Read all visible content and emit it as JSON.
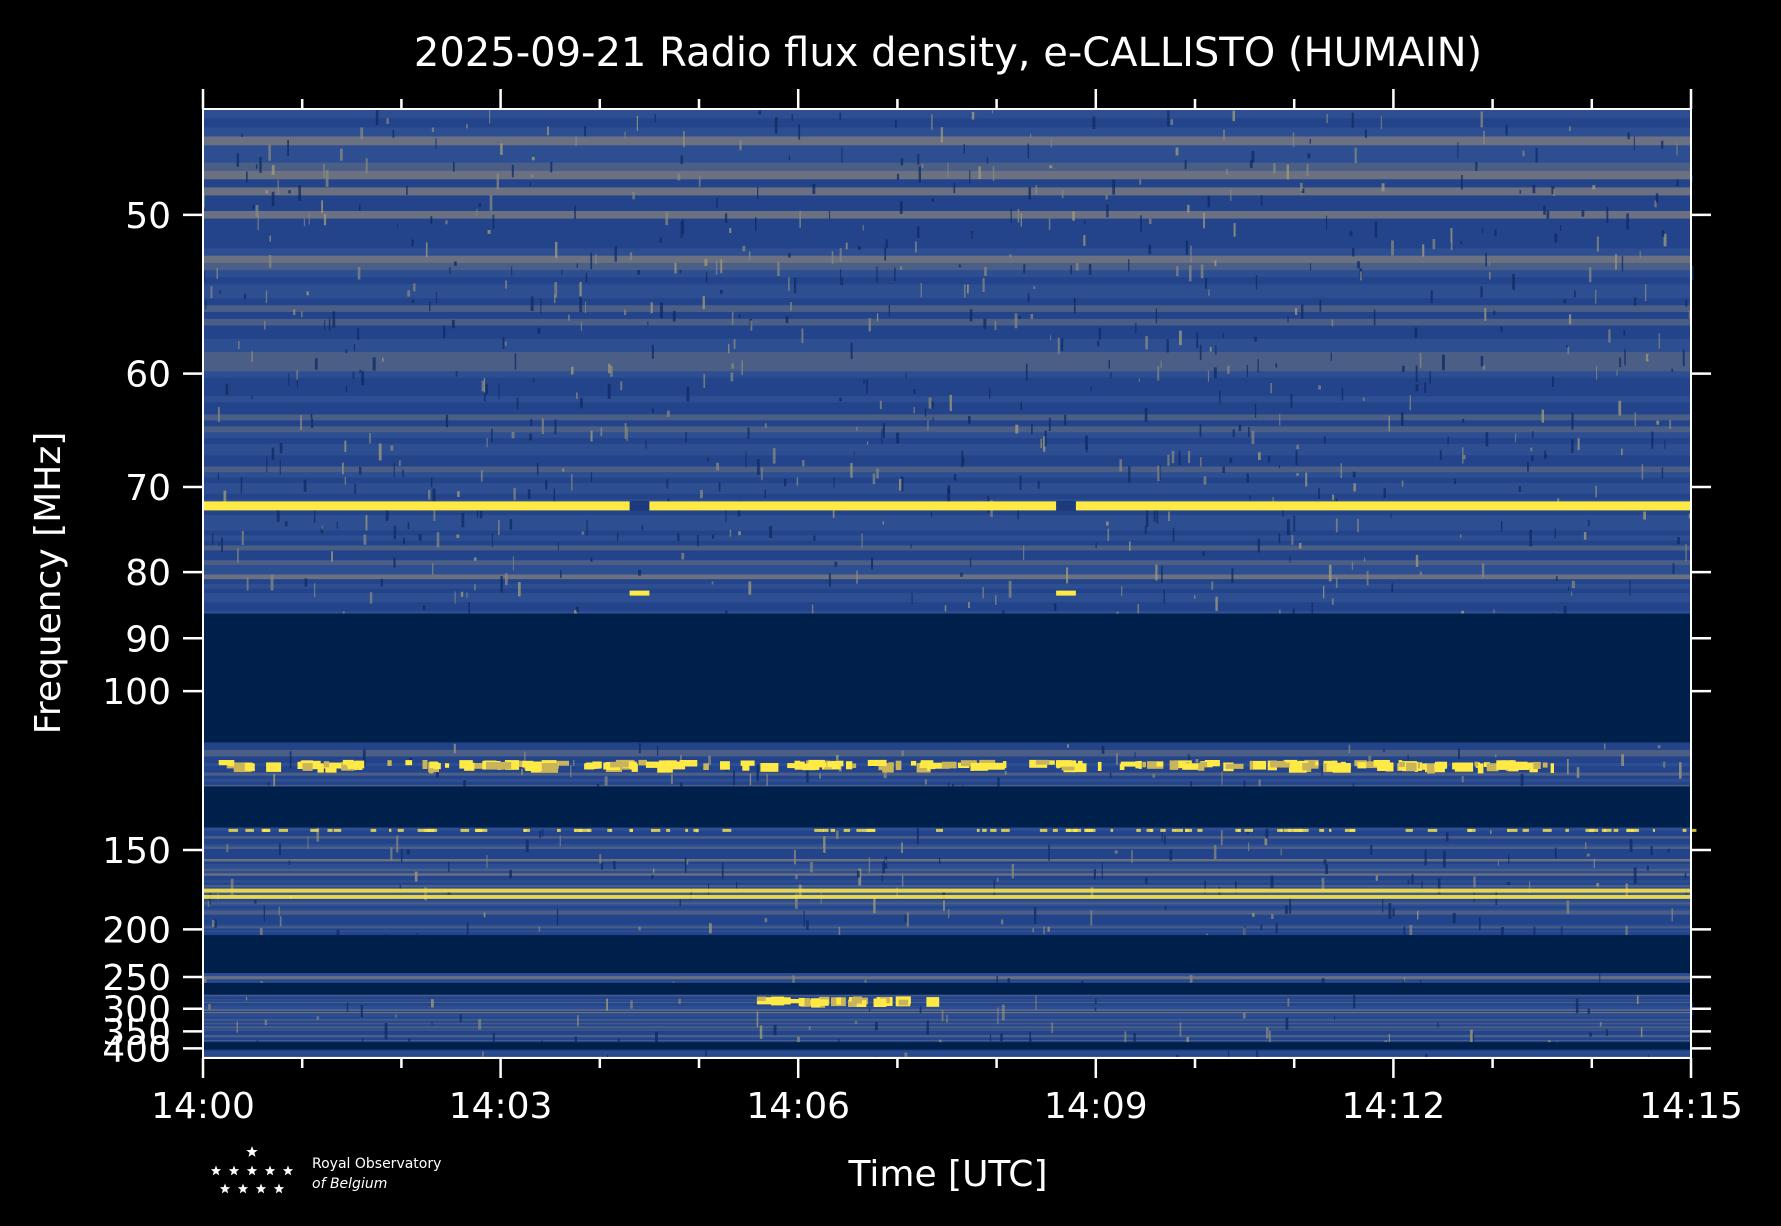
{
  "chart_data": {
    "type": "heatmap",
    "title": "2025-09-21 Radio flux density, e-CALLISTO (HUMAIN)",
    "xlabel": "Time [UTC]",
    "ylabel": "Frequency [MHz]",
    "x_ticks": [
      "14:00",
      "14:03",
      "14:06",
      "14:09",
      "14:12",
      "14:15"
    ],
    "y_ticks": [
      "50",
      "60",
      "70",
      "80",
      "90",
      "100",
      "150",
      "200",
      "250",
      "300",
      "350",
      "400"
    ],
    "y_tick_values": [
      50,
      60,
      70,
      80,
      90,
      100,
      150,
      200,
      250,
      300,
      350,
      400
    ],
    "y_scale": "reciprocal",
    "ylim": [
      45,
      435
    ],
    "xlim_minutes": [
      0,
      15
    ],
    "colormap": [
      "#00204c",
      "#2a4a8f",
      "#7c7b78",
      "#ffe945"
    ],
    "blank_bands_mhz": [
      [
        86,
        112
      ],
      [
        125,
        140
      ],
      [
        205,
        245
      ],
      [
        258,
        275
      ],
      [
        380,
        404
      ]
    ],
    "bright_lines_mhz": [
      72,
      172,
      176
    ],
    "burst_clusters": [
      {
        "freq_mhz": 118,
        "t_start_min": 0.1,
        "t_end_min": 13.6
      },
      {
        "freq_mhz": 285,
        "t_start_min": 5.5,
        "t_end_min": 7.4
      }
    ]
  },
  "logo": {
    "line1": "Royal Observatory",
    "line2": "of Belgium"
  },
  "colors": {
    "background": "#000000",
    "axis": "#ffffff",
    "text": "#ffffff"
  }
}
